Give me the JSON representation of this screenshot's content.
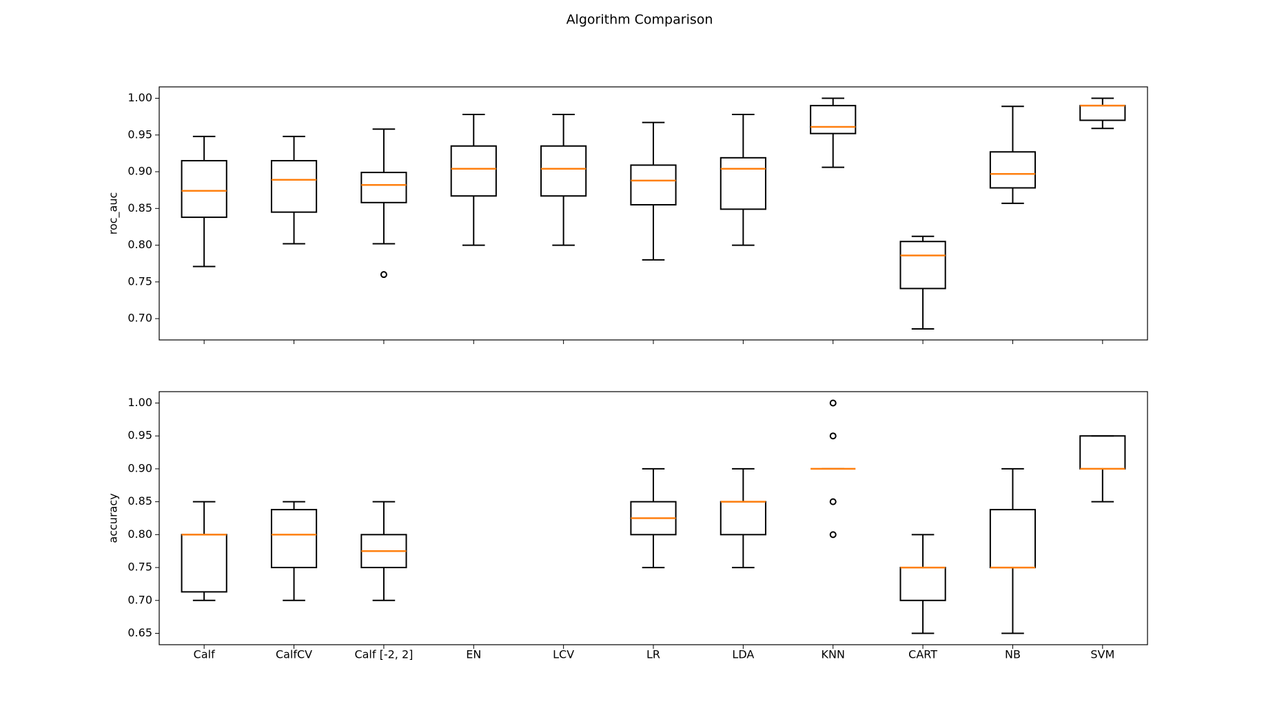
{
  "title": "Algorithm Comparison",
  "chart_data": [
    {
      "type": "box",
      "ylabel": "roc_auc",
      "box_color": "#000000",
      "median_color": "#ff7f0e",
      "ylim": [
        0.671,
        1.0155
      ],
      "yticks": [
        {
          "value": 0.7,
          "label": "0.70"
        },
        {
          "value": 0.75,
          "label": "0.75"
        },
        {
          "value": 0.8,
          "label": "0.80"
        },
        {
          "value": 0.85,
          "label": "0.85"
        },
        {
          "value": 0.9,
          "label": "0.90"
        },
        {
          "value": 0.95,
          "label": "0.95"
        },
        {
          "value": 1.0,
          "label": "1.00"
        }
      ],
      "boxes": [
        {
          "whislo": 0.771,
          "q1": 0.838,
          "med": 0.874,
          "q3": 0.915,
          "whishi": 0.948,
          "fliers": []
        },
        {
          "whislo": 0.802,
          "q1": 0.845,
          "med": 0.889,
          "q3": 0.915,
          "whishi": 0.948,
          "fliers": []
        },
        {
          "whislo": 0.802,
          "q1": 0.858,
          "med": 0.882,
          "q3": 0.899,
          "whishi": 0.958,
          "fliers": [
            0.76
          ]
        },
        {
          "whislo": 0.8,
          "q1": 0.867,
          "med": 0.904,
          "q3": 0.935,
          "whishi": 0.978,
          "fliers": []
        },
        {
          "whislo": 0.8,
          "q1": 0.867,
          "med": 0.904,
          "q3": 0.935,
          "whishi": 0.978,
          "fliers": []
        },
        {
          "whislo": 0.78,
          "q1": 0.855,
          "med": 0.888,
          "q3": 0.909,
          "whishi": 0.967,
          "fliers": []
        },
        {
          "whislo": 0.8,
          "q1": 0.849,
          "med": 0.904,
          "q3": 0.919,
          "whishi": 0.978,
          "fliers": []
        },
        {
          "whislo": 0.906,
          "q1": 0.952,
          "med": 0.961,
          "q3": 0.99,
          "whishi": 1.0,
          "fliers": []
        },
        {
          "whislo": 0.686,
          "q1": 0.741,
          "med": 0.786,
          "q3": 0.805,
          "whishi": 0.812,
          "fliers": []
        },
        {
          "whislo": 0.857,
          "q1": 0.878,
          "med": 0.897,
          "q3": 0.927,
          "whishi": 0.989,
          "fliers": []
        },
        {
          "whislo": 0.959,
          "q1": 0.97,
          "med": 0.99,
          "q3": 0.99,
          "whishi": 1.0,
          "fliers": []
        }
      ]
    },
    {
      "type": "box",
      "ylabel": "accuracy",
      "box_color": "#000000",
      "median_color": "#ff7f0e",
      "categories": [
        "Calf",
        "CalfCV",
        "Calf [-2, 2]",
        "EN",
        "LCV",
        "LR",
        "LDA",
        "KNN",
        "CART",
        "NB",
        "SVM"
      ],
      "ylim": [
        0.6327,
        1.0173
      ],
      "yticks": [
        {
          "value": 0.65,
          "label": "0.65"
        },
        {
          "value": 0.7,
          "label": "0.70"
        },
        {
          "value": 0.75,
          "label": "0.75"
        },
        {
          "value": 0.8,
          "label": "0.80"
        },
        {
          "value": 0.85,
          "label": "0.85"
        },
        {
          "value": 0.9,
          "label": "0.90"
        },
        {
          "value": 0.95,
          "label": "0.95"
        },
        {
          "value": 1.0,
          "label": "1.00"
        }
      ],
      "boxes": [
        {
          "whislo": 0.7,
          "q1": 0.713,
          "med": 0.8,
          "q3": 0.8,
          "whishi": 0.85,
          "fliers": []
        },
        {
          "whislo": 0.7,
          "q1": 0.75,
          "med": 0.8,
          "q3": 0.838,
          "whishi": 0.85,
          "fliers": []
        },
        {
          "whislo": 0.7,
          "q1": 0.75,
          "med": 0.775,
          "q3": 0.8,
          "whishi": 0.85,
          "fliers": []
        },
        null,
        null,
        {
          "whislo": 0.75,
          "q1": 0.8,
          "med": 0.825,
          "q3": 0.85,
          "whishi": 0.9,
          "fliers": []
        },
        {
          "whislo": 0.75,
          "q1": 0.8,
          "med": 0.85,
          "q3": 0.85,
          "whishi": 0.9,
          "fliers": []
        },
        {
          "whislo": 0.9,
          "q1": 0.9,
          "med": 0.9,
          "q3": 0.9,
          "whishi": 0.9,
          "fliers": [
            1.0,
            0.95,
            0.85,
            0.8
          ]
        },
        {
          "whislo": 0.65,
          "q1": 0.7,
          "med": 0.75,
          "q3": 0.75,
          "whishi": 0.8,
          "fliers": []
        },
        {
          "whislo": 0.65,
          "q1": 0.75,
          "med": 0.75,
          "q3": 0.838,
          "whishi": 0.9,
          "fliers": []
        },
        {
          "whislo": 0.85,
          "q1": 0.9,
          "med": 0.9,
          "q3": 0.95,
          "whishi": 0.95,
          "fliers": []
        }
      ]
    }
  ]
}
